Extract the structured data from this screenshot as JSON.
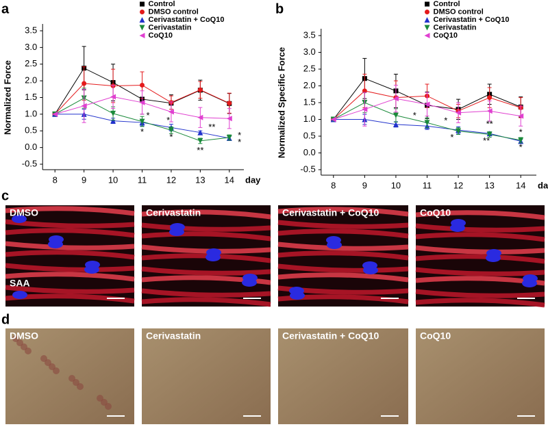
{
  "chart_data": [
    {
      "type": "line",
      "panel": "a",
      "ylabel": "Normalized Force",
      "xlabel": "day",
      "x": [
        8,
        9,
        10,
        11,
        12,
        13,
        14
      ],
      "xlim": [
        7.5,
        14.5
      ],
      "xticks": [
        8,
        9,
        10,
        11,
        12,
        13,
        14
      ],
      "ylim": [
        -0.5,
        3.5
      ],
      "yticks": [
        -0.5,
        {
          "value": 0,
          "label": "0.0"
        },
        0.5,
        {
          "value": 1,
          "label": "1.0"
        },
        1.5,
        {
          "value": 2,
          "label": "2.0"
        },
        2.5,
        {
          "value": 3,
          "label": "3.0"
        },
        3.5
      ],
      "legend": "upper right",
      "series": [
        {
          "name": "Control",
          "color": "#000000",
          "label_color": "#000000",
          "marker": "square",
          "values": [
            1.0,
            2.38,
            1.95,
            1.45,
            1.33,
            1.72,
            1.32
          ],
          "errors": [
            0,
            0.65,
            0.55,
            0.45,
            0.25,
            0.3,
            0.3
          ]
        },
        {
          "name": "DMSO control",
          "color": "#e41a1c",
          "label_color": "#e41a1c",
          "marker": "circle",
          "values": [
            1.0,
            1.92,
            1.85,
            1.87,
            1.35,
            1.73,
            1.33
          ],
          "errors": [
            0,
            0.5,
            0.5,
            0.4,
            0.2,
            0.25,
            0.3
          ]
        },
        {
          "name": "Cerivastatin + CoQ10",
          "color": "#2233cc",
          "label_color": "#8497b0",
          "marker": "triangle-up",
          "values": [
            1.0,
            1.0,
            0.8,
            0.75,
            0.6,
            0.45,
            0.28
          ],
          "errors": [
            0,
            0.15,
            0.08,
            0.1,
            0.1,
            0.05,
            0.05
          ]
        },
        {
          "name": "Cerivastatin",
          "color": "#1a8a3a",
          "label_color": "#1a8a3a",
          "marker": "triangle-down",
          "values": [
            1.0,
            1.48,
            1.02,
            0.78,
            0.52,
            0.2,
            0.3
          ],
          "errors": [
            0,
            0.3,
            0.2,
            0.15,
            0.1,
            0.08,
            0.08
          ]
        },
        {
          "name": "CoQ10",
          "color": "#e040d0",
          "label_color": "#e040d0",
          "marker": "triangle-left",
          "values": [
            1.0,
            1.25,
            1.52,
            1.35,
            1.07,
            0.9,
            0.87
          ],
          "errors": [
            0,
            0.5,
            0.35,
            0.35,
            0.3,
            0.3,
            0.3
          ]
        }
      ],
      "annotations": [
        {
          "text": "*",
          "x": 11.2,
          "y": 0.95,
          "color": "#1a8a3a"
        },
        {
          "text": "*",
          "x": 11,
          "y": 0.45,
          "color": "#2233cc"
        },
        {
          "text": "*",
          "x": 11.9,
          "y": 0.8,
          "color": "#1a8a3a"
        },
        {
          "text": "*",
          "x": 12,
          "y": 0.3,
          "color": "#2233cc"
        },
        {
          "text": "**",
          "x": 13.4,
          "y": 0.6,
          "color": "#2233cc"
        },
        {
          "text": "**",
          "x": 13,
          "y": -0.1,
          "color": "#1a8a3a"
        },
        {
          "text": "*",
          "x": 14.35,
          "y": 0.35,
          "color": "#2233cc"
        },
        {
          "text": "*",
          "x": 14.35,
          "y": 0.15,
          "color": "#1a8a3a"
        }
      ]
    },
    {
      "type": "line",
      "panel": "b",
      "ylabel": "Normalized Specific Force",
      "xlabel": "day",
      "x": [
        8,
        9,
        10,
        11,
        12,
        13,
        14
      ],
      "xlim": [
        7.5,
        14.5
      ],
      "xticks": [
        8,
        9,
        10,
        11,
        12,
        13,
        14
      ],
      "ylim": [
        -0.5,
        3.5
      ],
      "yticks": [
        -0.5,
        {
          "value": 0,
          "label": "0.0"
        },
        0.5,
        {
          "value": 1,
          "label": "1.0"
        },
        1.5,
        {
          "value": 2,
          "label": "2.0"
        },
        2.5,
        {
          "value": 3,
          "label": "3.0"
        },
        3.5
      ],
      "legend": "upper right",
      "series": [
        {
          "name": "Control",
          "color": "#000000",
          "label_color": "#000000",
          "marker": "square",
          "values": [
            1.0,
            2.22,
            1.85,
            1.42,
            1.3,
            1.75,
            1.37
          ],
          "errors": [
            0,
            0.6,
            0.5,
            0.4,
            0.3,
            0.3,
            0.3
          ]
        },
        {
          "name": "DMSO control",
          "color": "#e41a1c",
          "label_color": "#e41a1c",
          "marker": "circle",
          "values": [
            1.0,
            1.85,
            1.65,
            1.7,
            1.25,
            1.65,
            1.35
          ],
          "errors": [
            0,
            0.5,
            0.5,
            0.35,
            0.2,
            0.3,
            0.3
          ]
        },
        {
          "name": "Cerivastatin + CoQ10",
          "color": "#2233cc",
          "label_color": "#8497b0",
          "marker": "triangle-up",
          "values": [
            1.0,
            1.0,
            0.85,
            0.8,
            0.68,
            0.58,
            0.35
          ],
          "errors": [
            0,
            0.15,
            0.08,
            0.1,
            0.1,
            0.05,
            0.05
          ]
        },
        {
          "name": "Cerivastatin",
          "color": "#1a8a3a",
          "label_color": "#1a8a3a",
          "marker": "triangle-down",
          "values": [
            1.0,
            1.5,
            1.12,
            0.9,
            0.65,
            0.55,
            0.38
          ],
          "errors": [
            0,
            0.3,
            0.2,
            0.15,
            0.1,
            0.08,
            0.08
          ]
        },
        {
          "name": "CoQ10",
          "color": "#e040d0",
          "label_color": "#e040d0",
          "marker": "triangle-left",
          "values": [
            1.0,
            1.3,
            1.62,
            1.45,
            1.2,
            1.25,
            1.1
          ],
          "errors": [
            0,
            0.5,
            0.4,
            0.35,
            0.3,
            0.3,
            0.3
          ]
        }
      ],
      "annotations": [
        {
          "text": "*",
          "x": 10.6,
          "y": 1.1,
          "color": "#1a8a3a"
        },
        {
          "text": "*",
          "x": 11.6,
          "y": 0.95,
          "color": "#1a8a3a"
        },
        {
          "text": "*",
          "x": 11.8,
          "y": 0.45,
          "color": "#2233cc"
        },
        {
          "text": "**",
          "x": 13,
          "y": 0.85,
          "color": "#2233cc"
        },
        {
          "text": "**",
          "x": 12.9,
          "y": 0.35,
          "color": "#1a8a3a"
        },
        {
          "text": "*",
          "x": 14,
          "y": 0.6,
          "color": "#2233cc"
        },
        {
          "text": "*",
          "x": 14,
          "y": 0.15,
          "color": "#1a8a3a"
        }
      ]
    }
  ],
  "panels": [
    {
      "letter": "c",
      "images": [
        "DMSO",
        "Cerivastatin",
        "Cerivastatin + CoQ10",
        "CoQ10"
      ],
      "stain": "SAA"
    },
    {
      "letter": "d",
      "images": [
        "DMSO",
        "Cerivastatin",
        "Cerivastatin + CoQ10",
        "CoQ10"
      ]
    }
  ]
}
